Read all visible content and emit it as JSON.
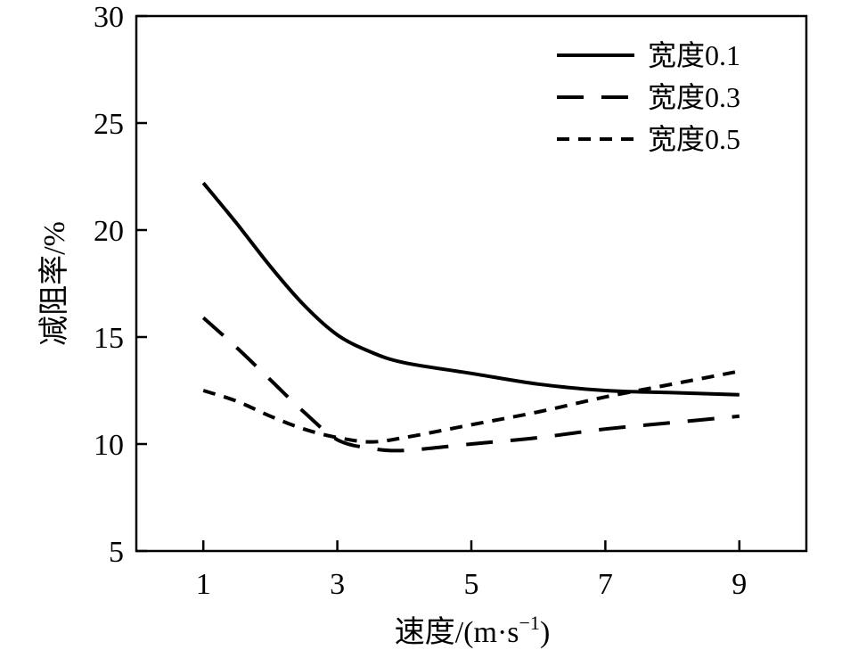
{
  "chart_data": {
    "type": "line",
    "title": "",
    "xlabel": "速度/(m·s",
    "xlabel_sup": "−1",
    "xlabel_end": ")",
    "ylabel": "减阻率/%",
    "xlim": [
      0,
      10
    ],
    "ylim": [
      5,
      30
    ],
    "xticks": [
      1,
      3,
      5,
      7,
      9
    ],
    "yticks": [
      5,
      10,
      15,
      20,
      25,
      30
    ],
    "grid": false,
    "legend_position": "top-right",
    "series": [
      {
        "name": "宽度0.1",
        "dash": "solid",
        "x": [
          1,
          1.5,
          2,
          2.5,
          3,
          3.5,
          4,
          5,
          6,
          7,
          8,
          9
        ],
        "y": [
          22.2,
          20.3,
          18.3,
          16.5,
          15.1,
          14.3,
          13.8,
          13.3,
          12.8,
          12.5,
          12.4,
          12.3
        ]
      },
      {
        "name": "宽度0.3",
        "dash": "long-dash",
        "x": [
          1,
          1.5,
          2,
          2.5,
          3,
          3.5,
          4,
          5,
          6,
          7,
          8,
          9
        ],
        "y": [
          15.9,
          14.5,
          13.0,
          11.5,
          10.2,
          9.8,
          9.7,
          10.0,
          10.3,
          10.7,
          11.0,
          11.3
        ]
      },
      {
        "name": "宽度0.5",
        "dash": "short-dash",
        "x": [
          1,
          1.5,
          2,
          2.5,
          3,
          3.5,
          4,
          5,
          6,
          7,
          8,
          9
        ],
        "y": [
          12.5,
          12.0,
          11.3,
          10.7,
          10.3,
          10.1,
          10.3,
          10.9,
          11.5,
          12.2,
          12.8,
          13.4
        ]
      }
    ]
  }
}
